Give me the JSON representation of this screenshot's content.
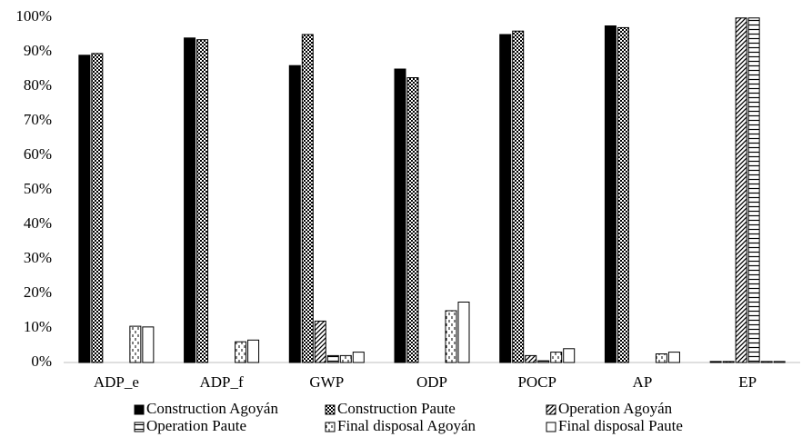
{
  "chart_data": {
    "type": "bar",
    "categories": [
      "ADP_e",
      "ADP_f",
      "GWP",
      "ODP",
      "POCP",
      "AP",
      "EP"
    ],
    "series": [
      {
        "name": "Construction Agoyán",
        "color": "#000000",
        "pattern": "solid",
        "values": [
          89,
          94,
          86,
          85,
          95,
          97.5,
          0.3
        ]
      },
      {
        "name": "Construction Paute",
        "color": "#000000",
        "pattern": "crosshatch",
        "values": [
          89.5,
          93.5,
          95,
          82.5,
          96,
          97,
          0.3
        ]
      },
      {
        "name": "Operation Agoyán",
        "color": "#000000",
        "pattern": "diagonal",
        "values": [
          0,
          0,
          12,
          0,
          2,
          0,
          99.8
        ]
      },
      {
        "name": "Operation Paute",
        "color": "#000000",
        "pattern": "horizontal",
        "values": [
          0,
          0,
          2,
          0,
          0.5,
          0,
          99.8
        ]
      },
      {
        "name": "Final disposal Agoyán",
        "color": "#000000",
        "pattern": "dashes",
        "values": [
          10.5,
          6,
          2,
          15,
          3,
          2.5,
          0.3
        ]
      },
      {
        "name": "Final disposal Paute",
        "color": "#000000",
        "pattern": "none",
        "values": [
          10.3,
          6.5,
          3,
          17.5,
          4,
          3,
          0.3
        ]
      }
    ],
    "ylim": [
      0,
      100
    ],
    "yticks": [
      {
        "value": 0,
        "label": "0%"
      },
      {
        "value": 10,
        "label": "10%"
      },
      {
        "value": 20,
        "label": "20%"
      },
      {
        "value": 30,
        "label": "30%"
      },
      {
        "value": 40,
        "label": "40%"
      },
      {
        "value": 50,
        "label": "50%"
      },
      {
        "value": 60,
        "label": "60%"
      },
      {
        "value": 70,
        "label": "70%"
      },
      {
        "value": 80,
        "label": "80%"
      },
      {
        "value": 90,
        "label": "90%"
      },
      {
        "value": 100,
        "label": "100%"
      }
    ],
    "grid": false,
    "legend": "bottom"
  }
}
